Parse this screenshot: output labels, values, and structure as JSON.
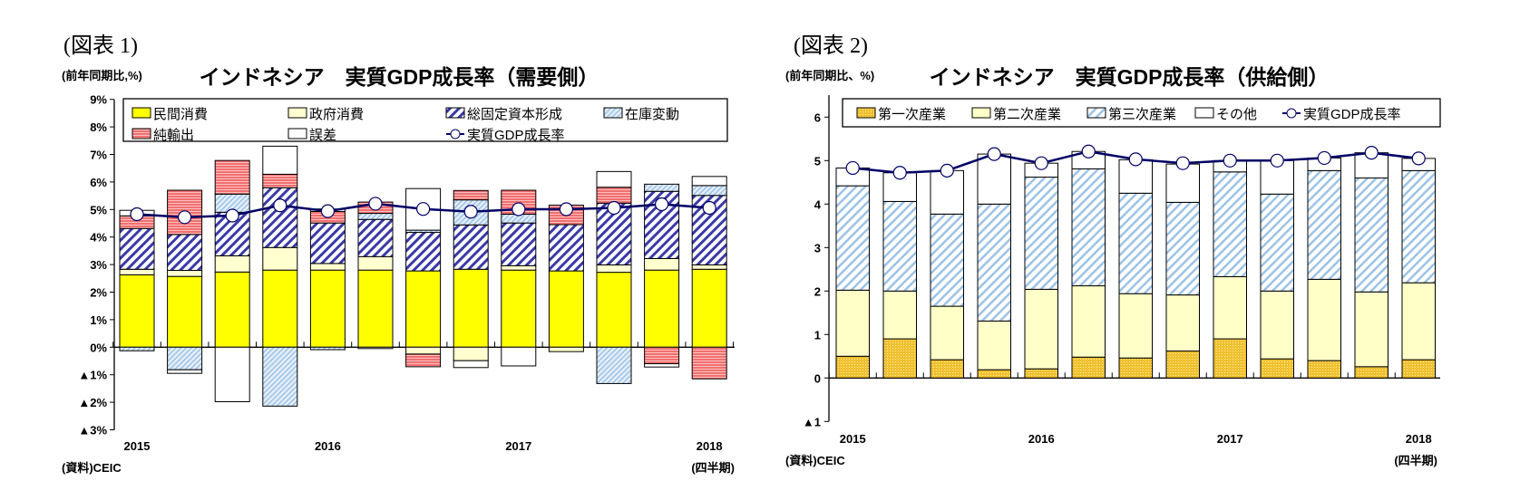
{
  "chart_data": [
    {
      "type": "bar",
      "stacked": true,
      "figure_label": "(図表 1)",
      "title": "インドネシア　実質GDP成長率（需要側）",
      "ylabel": "(前年同期比,%)",
      "xlabel": "(四半期)",
      "source": "(資料)CEIC",
      "ylim": [
        -3,
        9
      ],
      "yticks": [
        9,
        8,
        7,
        6,
        5,
        4,
        3,
        2,
        1,
        0,
        -1,
        -2,
        -3
      ],
      "ytick_labels": [
        "9%",
        "8%",
        "7%",
        "6%",
        "5%",
        "4%",
        "3%",
        "2%",
        "1%",
        "0%",
        "▲1%",
        "▲2%",
        "▲3%"
      ],
      "categories": [
        "2015Q1",
        "2015Q2",
        "2015Q3",
        "2015Q4",
        "2016Q1",
        "2016Q2",
        "2016Q3",
        "2016Q4",
        "2017Q1",
        "2017Q2",
        "2017Q3",
        "2017Q4",
        "2018Q1"
      ],
      "xtick_labels": [
        {
          "index": 0,
          "label": "2015"
        },
        {
          "index": 4,
          "label": "2016"
        },
        {
          "index": 8,
          "label": "2017"
        },
        {
          "index": 12,
          "label": "2018"
        }
      ],
      "legend_placement": "top",
      "series": [
        {
          "name": "民間消費",
          "kind": "bar",
          "color": "#ffff00",
          "pattern": "solid",
          "values": [
            2.63,
            2.57,
            2.73,
            2.8,
            2.8,
            2.8,
            2.77,
            2.83,
            2.8,
            2.77,
            2.72,
            2.8,
            2.83
          ]
        },
        {
          "name": "政府消費",
          "kind": "bar",
          "color": "#ffffd0",
          "pattern": "solid",
          "values": [
            0.2,
            0.22,
            0.59,
            0.82,
            0.24,
            0.49,
            -0.25,
            -0.49,
            0.16,
            -0.16,
            0.27,
            0.42,
            0.16
          ]
        },
        {
          "name": "総固定資本形成",
          "kind": "bar",
          "color": "#3a3aa8",
          "pattern": "diagonal-hatch",
          "values": [
            1.48,
            1.3,
            1.58,
            2.17,
            1.47,
            1.35,
            1.4,
            1.61,
            1.55,
            1.68,
            2.24,
            2.44,
            2.52
          ]
        },
        {
          "name": "在庫変動",
          "kind": "bar",
          "color": "#9cc3e6",
          "pattern": "fine-diagonal-hatch",
          "values": [
            -0.13,
            -0.82,
            0.66,
            -2.14,
            -0.09,
            0.22,
            0.08,
            0.91,
            0.32,
            0.0,
            -1.32,
            0.26,
            0.36
          ]
        },
        {
          "name": "純輸出",
          "kind": "bar",
          "color": "#f07070",
          "pattern": "horizontal-stripes",
          "values": [
            0.46,
            1.61,
            1.22,
            0.49,
            0.42,
            0.41,
            -0.46,
            0.34,
            0.87,
            0.71,
            0.58,
            -0.6,
            -1.15
          ]
        },
        {
          "name": "誤差",
          "kind": "bar",
          "color": "#ffffff",
          "pattern": "solid",
          "values": [
            0.2,
            -0.13,
            -1.98,
            1.02,
            0.09,
            -0.05,
            1.51,
            -0.25,
            -0.68,
            0.0,
            0.57,
            -0.12,
            0.33
          ]
        },
        {
          "name": "実質GDP成長率",
          "kind": "line",
          "color": "#000066",
          "marker": "open-circle",
          "values": [
            4.83,
            4.72,
            4.78,
            5.15,
            4.94,
            5.21,
            5.02,
            4.92,
            5.01,
            5.01,
            5.06,
            5.19,
            5.06
          ]
        }
      ]
    },
    {
      "type": "bar",
      "stacked": true,
      "figure_label": "(図表 2)",
      "title": "インドネシア　実質GDP成長率（供給側）",
      "ylabel": "(前年同期比、%)",
      "xlabel": "(四半期)",
      "source": "(資料)CEIC",
      "ylim": [
        -1,
        6.5
      ],
      "yticks": [
        6,
        5,
        4,
        3,
        2,
        1,
        0,
        -1
      ],
      "ytick_labels": [
        "6",
        "5",
        "4",
        "3",
        "2",
        "1",
        "0",
        "▲1"
      ],
      "categories": [
        "2015Q1",
        "2015Q2",
        "2015Q3",
        "2015Q4",
        "2016Q1",
        "2016Q2",
        "2016Q3",
        "2016Q4",
        "2017Q1",
        "2017Q2",
        "2017Q3",
        "2017Q4",
        "2018Q1"
      ],
      "xtick_labels": [
        {
          "index": 0,
          "label": "2015"
        },
        {
          "index": 4,
          "label": "2016"
        },
        {
          "index": 8,
          "label": "2017"
        },
        {
          "index": 12,
          "label": "2018"
        }
      ],
      "legend_placement": "top",
      "series": [
        {
          "name": "第一次産業",
          "kind": "bar",
          "color": "#f0c030",
          "pattern": "dotted",
          "values": [
            0.5,
            0.9,
            0.42,
            0.19,
            0.21,
            0.48,
            0.46,
            0.62,
            0.9,
            0.44,
            0.4,
            0.26,
            0.42
          ]
        },
        {
          "name": "第二次産業",
          "kind": "bar",
          "color": "#ffffc8",
          "pattern": "solid",
          "values": [
            1.52,
            1.1,
            1.23,
            1.12,
            1.83,
            1.64,
            1.48,
            1.29,
            1.43,
            1.56,
            1.87,
            1.72,
            1.77
          ]
        },
        {
          "name": "第三次産業",
          "kind": "bar",
          "color": "#9cc3e6",
          "pattern": "diagonal-hatch",
          "values": [
            2.4,
            2.06,
            2.12,
            2.69,
            2.58,
            2.69,
            2.31,
            2.13,
            2.41,
            2.23,
            2.5,
            2.62,
            2.58
          ]
        },
        {
          "name": "その他",
          "kind": "bar",
          "color": "#ffffff",
          "pattern": "solid",
          "values": [
            0.41,
            0.66,
            1.0,
            1.15,
            0.32,
            0.4,
            0.77,
            0.88,
            0.26,
            0.77,
            0.29,
            0.58,
            0.28
          ]
        },
        {
          "name": "実質GDP成長率",
          "kind": "line",
          "color": "#000066",
          "marker": "open-circle",
          "values": [
            4.83,
            4.72,
            4.77,
            5.15,
            4.94,
            5.21,
            5.03,
            4.94,
            5.0,
            5.0,
            5.06,
            5.18,
            5.05
          ]
        }
      ]
    }
  ]
}
